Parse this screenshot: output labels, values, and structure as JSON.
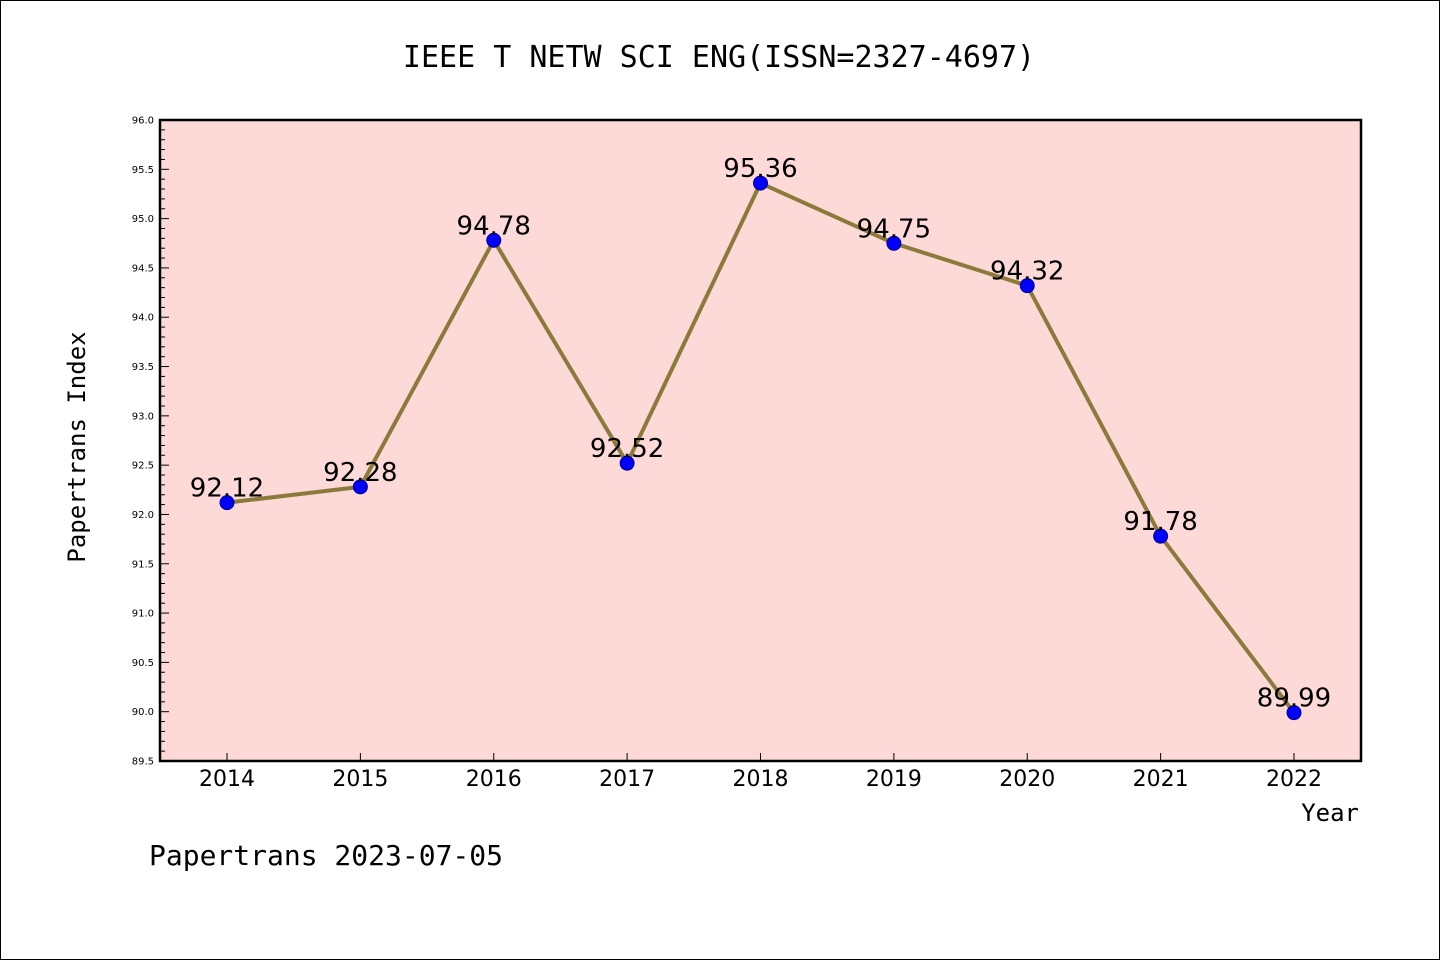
{
  "chart_data": {
    "type": "line",
    "title": "IEEE T NETW SCI ENG(ISSN=2327-4697)",
    "xlabel": "Year",
    "ylabel": "Papertrans Index",
    "categories": [
      "2014",
      "2015",
      "2016",
      "2017",
      "2018",
      "2019",
      "2020",
      "2021",
      "2022"
    ],
    "series": [
      {
        "values": [
          92.12,
          92.28,
          94.78,
          92.52,
          95.36,
          94.75,
          94.32,
          91.78,
          89.99
        ],
        "data_labels": [
          "92.12",
          "92.28",
          "94.78",
          "92.52",
          "95.36",
          "94.75",
          "94.32",
          "91.78",
          "89.99"
        ]
      }
    ],
    "ylim": [
      89.5,
      96.0
    ],
    "yticks": [
      "89.5",
      "90.0",
      "90.5",
      "91.0",
      "91.5",
      "92.0",
      "92.5",
      "93.0",
      "93.5",
      "94.0",
      "94.5",
      "95.0",
      "95.5",
      "96.0"
    ],
    "grid": false,
    "colors": {
      "plot_background": "#fddad8",
      "line": "#8b7a3a",
      "marker": "#0000ff"
    }
  },
  "footer": "Papertrans 2023-07-05"
}
